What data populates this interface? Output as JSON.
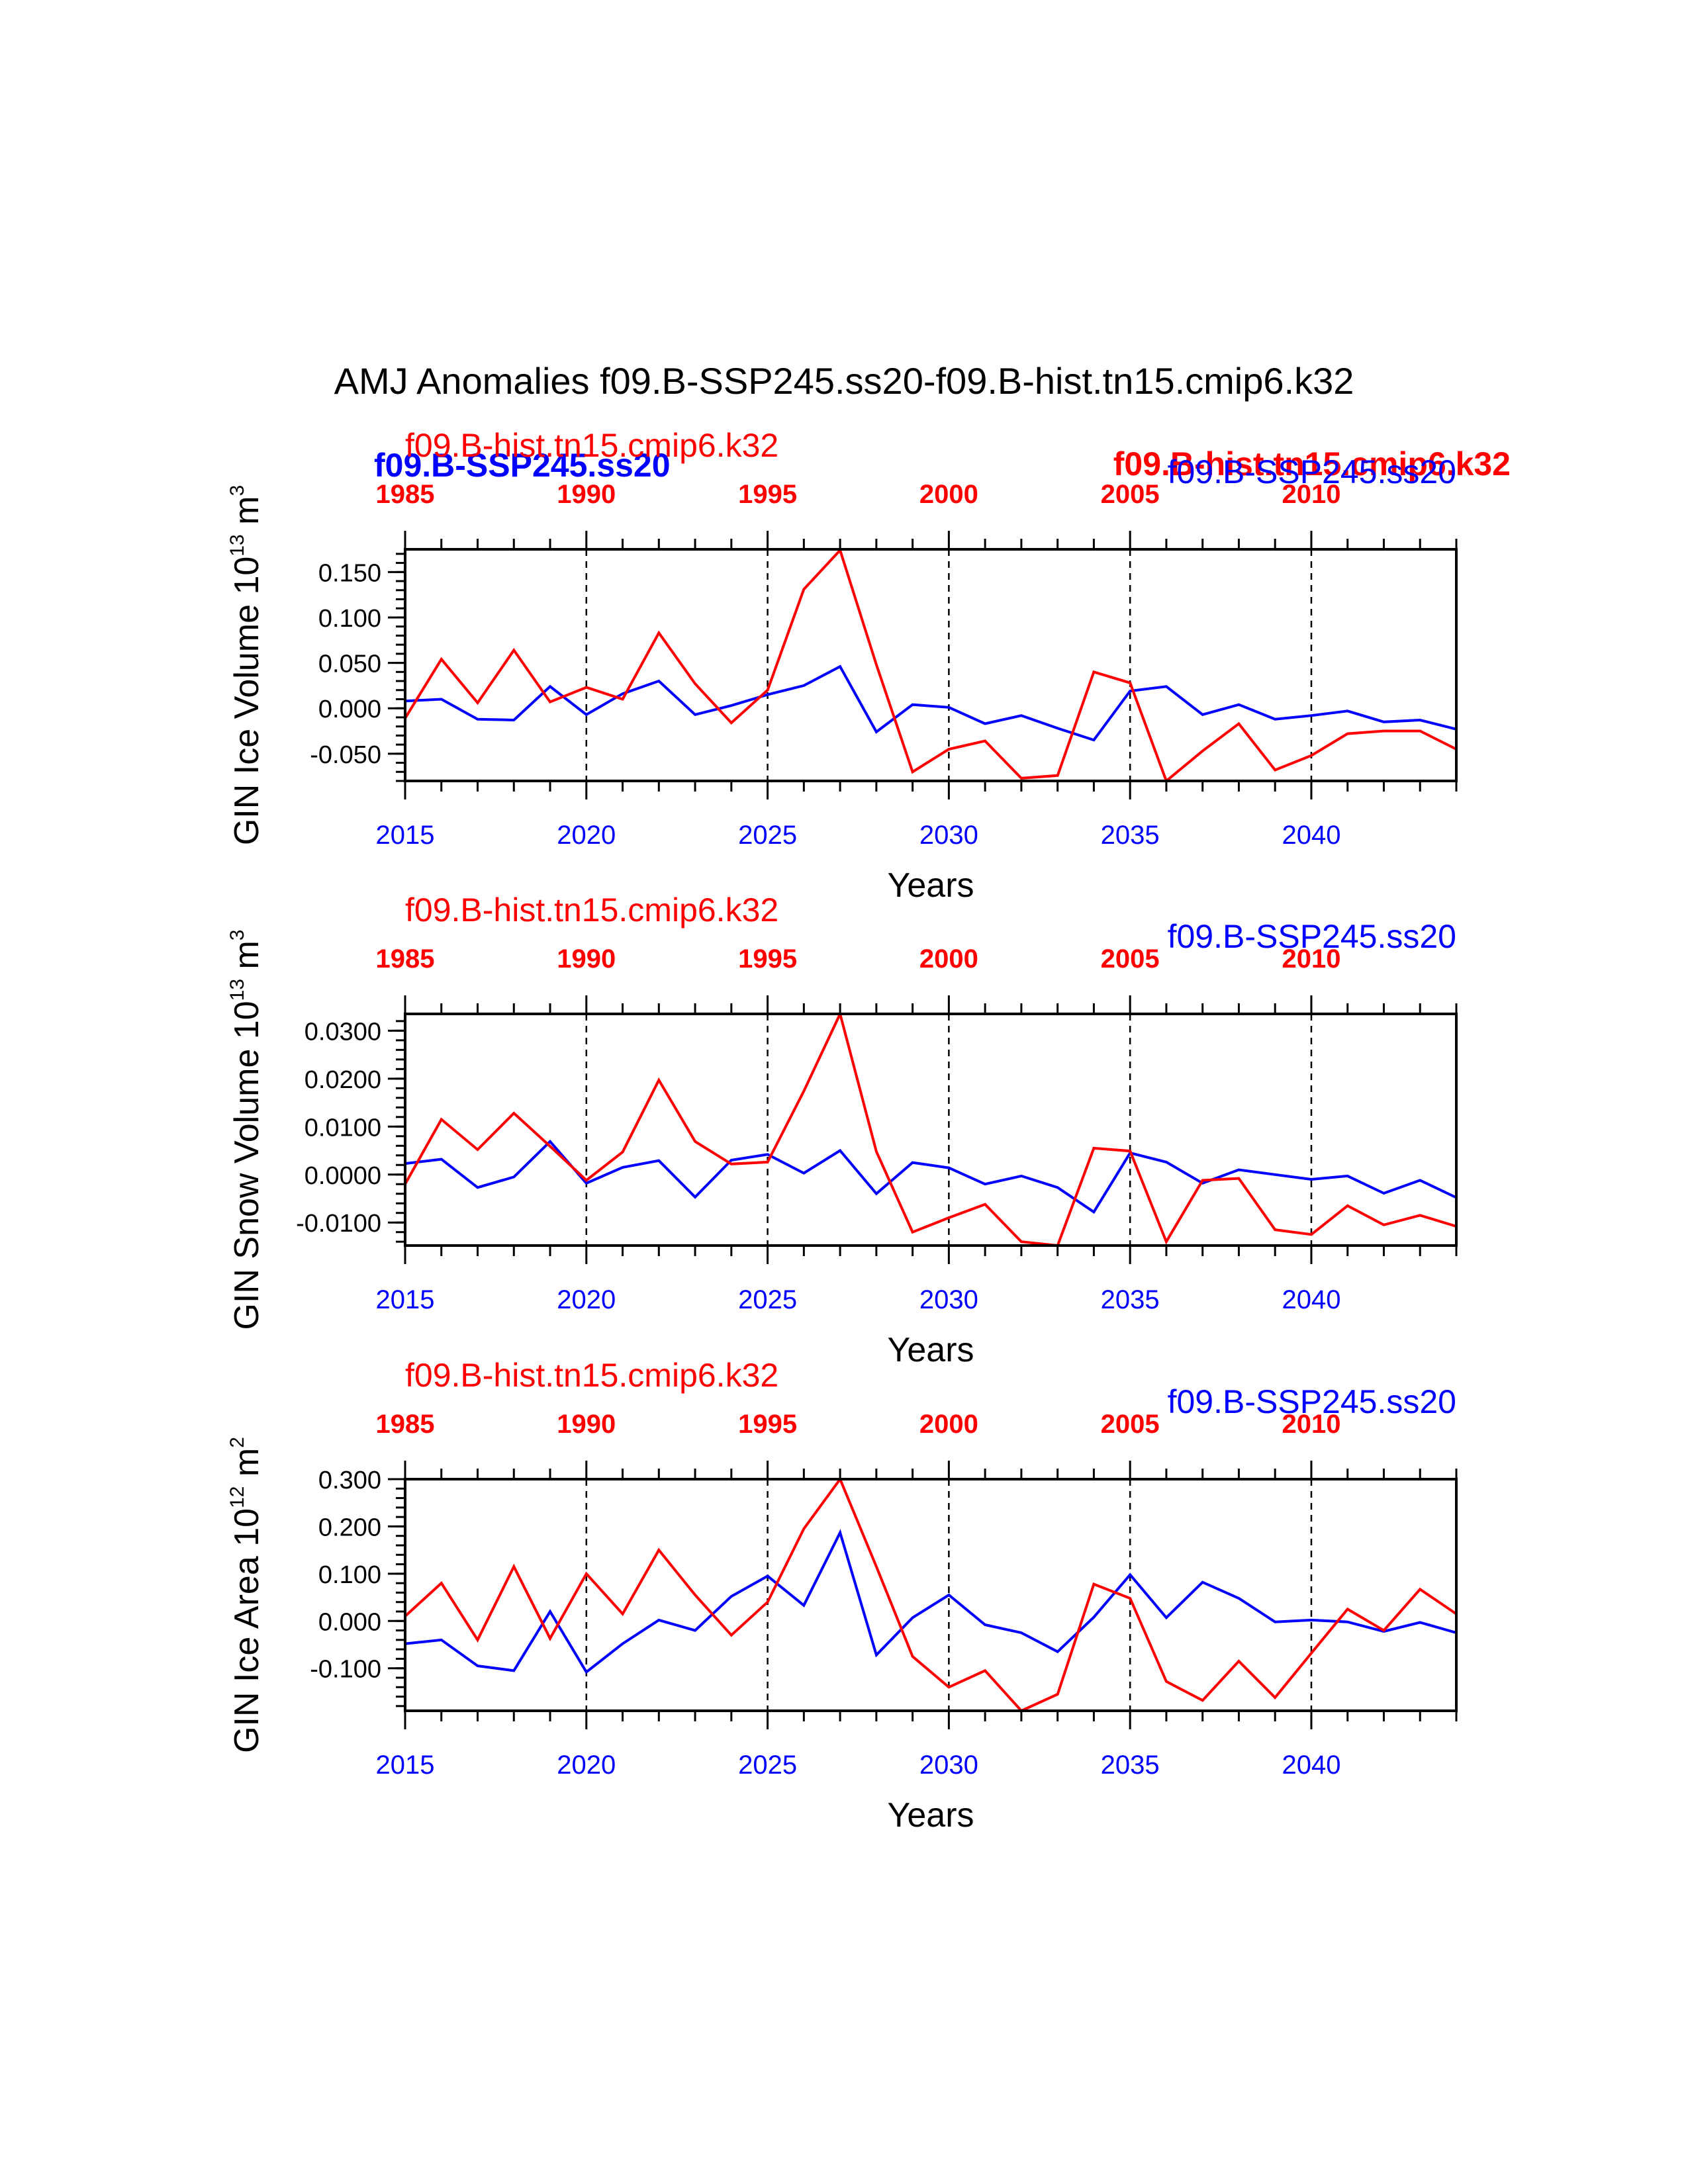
{
  "title": "AMJ Anomalies f09.B-SSP245.ss20-f09.B-hist.tn15.cmip6.k32",
  "overlay_labels": {
    "left_blue": "f09.B-SSP245.ss20",
    "right_red": "f09.B-hist.tn15.cmip6.k32"
  },
  "colors": {
    "ssp": "#0000ff",
    "hist": "#ff0000",
    "axis": "#000000"
  },
  "chart_data": [
    {
      "type": "line",
      "ylabel": "GIN Ice Volume",
      "yunit": "10^13 m^3",
      "yunit_base": "10",
      "yunit_exp": "13",
      "yunit_tail": "m",
      "yunit_tail_exp": "3",
      "xlabel": "Years",
      "top_axis_title": "f09.B-hist.tn15.cmip6.k32",
      "bottom_axis_title": "f09.B-SSP245.ss20",
      "xlim": [
        2015,
        2044
      ],
      "top_xlim": [
        1985,
        2014
      ],
      "ylim": [
        -0.08,
        0.175
      ],
      "yticks": [
        -0.05,
        0.0,
        0.05,
        0.1,
        0.15
      ],
      "ytick_labels": [
        "-0.050",
        "0.000",
        "0.050",
        "0.100",
        "0.150"
      ],
      "yminor": 0.01,
      "xticks": [
        2015,
        2020,
        2025,
        2030,
        2035,
        2040
      ],
      "xtick_labels": [
        "2015",
        "2020",
        "2025",
        "2030",
        "2035",
        "2040"
      ],
      "top_xticks": [
        1985,
        1990,
        1995,
        2000,
        2005,
        2010
      ],
      "top_xtick_labels": [
        "1985",
        "1990",
        "1995",
        "2000",
        "2005",
        "2010"
      ],
      "x": [
        2015,
        2016,
        2017,
        2018,
        2019,
        2020,
        2021,
        2022,
        2023,
        2024,
        2025,
        2026,
        2027,
        2028,
        2029,
        2030,
        2031,
        2032,
        2033,
        2034,
        2035,
        2036,
        2037,
        2038,
        2039,
        2040,
        2041,
        2042,
        2043,
        2044
      ],
      "series": [
        {
          "name": "f09.B-SSP245.ss20",
          "color": "#0000ff",
          "values": [
            0.008,
            0.01,
            -0.012,
            -0.013,
            0.024,
            -0.007,
            0.016,
            0.03,
            -0.007,
            0.003,
            0.015,
            0.025,
            0.046,
            -0.026,
            0.004,
            0.001,
            -0.017,
            -0.008,
            -0.022,
            -0.035,
            0.019,
            0.024,
            -0.007,
            0.004,
            -0.012,
            -0.008,
            -0.003,
            -0.015,
            -0.013,
            -0.023
          ]
        },
        {
          "name": "f09.B-hist.tn15.cmip6.k32",
          "color": "#ff0000",
          "values": [
            -0.011,
            0.054,
            0.006,
            0.064,
            0.007,
            0.023,
            0.01,
            0.083,
            0.027,
            -0.016,
            0.02,
            0.131,
            0.174,
            0.048,
            -0.07,
            -0.045,
            -0.036,
            -0.077,
            -0.074,
            0.04,
            0.028,
            -0.08,
            -0.047,
            -0.017,
            -0.068,
            -0.052,
            -0.028,
            -0.025,
            -0.025,
            -0.045
          ]
        }
      ]
    },
    {
      "type": "line",
      "ylabel": "GIN Snow Volume",
      "yunit": "10^13 m^3",
      "yunit_base": "10",
      "yunit_exp": "13",
      "yunit_tail": "m",
      "yunit_tail_exp": "3",
      "xlabel": "Years",
      "top_axis_title": "f09.B-hist.tn15.cmip6.k32",
      "bottom_axis_title": "f09.B-SSP245.ss20",
      "xlim": [
        2015,
        2044
      ],
      "top_xlim": [
        1985,
        2014
      ],
      "ylim": [
        -0.0148,
        0.0335
      ],
      "yticks": [
        -0.01,
        0.0,
        0.01,
        0.02,
        0.03
      ],
      "ytick_labels": [
        "-0.0100",
        "0.0000",
        "0.0100",
        "0.0200",
        "0.0300"
      ],
      "yminor": 0.002,
      "xticks": [
        2015,
        2020,
        2025,
        2030,
        2035,
        2040
      ],
      "xtick_labels": [
        "2015",
        "2020",
        "2025",
        "2030",
        "2035",
        "2040"
      ],
      "top_xticks": [
        1985,
        1990,
        1995,
        2000,
        2005,
        2010
      ],
      "top_xtick_labels": [
        "1985",
        "1990",
        "1995",
        "2000",
        "2005",
        "2010"
      ],
      "x": [
        2015,
        2016,
        2017,
        2018,
        2019,
        2020,
        2021,
        2022,
        2023,
        2024,
        2025,
        2026,
        2027,
        2028,
        2029,
        2030,
        2031,
        2032,
        2033,
        2034,
        2035,
        2036,
        2037,
        2038,
        2039,
        2040,
        2041,
        2042,
        2043,
        2044
      ],
      "series": [
        {
          "name": "f09.B-SSP245.ss20",
          "color": "#0000ff",
          "values": [
            0.0023,
            0.0032,
            -0.0027,
            -0.0005,
            0.0069,
            -0.0018,
            0.0015,
            0.0029,
            -0.0047,
            0.003,
            0.0042,
            0.0003,
            0.005,
            -0.004,
            0.0025,
            0.0014,
            -0.002,
            -0.0003,
            -0.0027,
            -0.0078,
            0.0045,
            0.0026,
            -0.0018,
            0.001,
            0.0,
            -0.001,
            -0.0003,
            -0.0039,
            -0.0012,
            -0.0048
          ]
        },
        {
          "name": "f09.B-hist.tn15.cmip6.k32",
          "color": "#ff0000",
          "values": [
            -0.002,
            0.0115,
            0.0052,
            0.0128,
            0.0059,
            -0.0012,
            0.0047,
            0.0197,
            0.0069,
            0.0022,
            0.0026,
            0.0174,
            0.0335,
            0.0048,
            -0.012,
            -0.009,
            -0.0062,
            -0.014,
            -0.0148,
            0.0055,
            0.0049,
            -0.014,
            -0.0012,
            -0.0008,
            -0.0115,
            -0.0125,
            -0.0065,
            -0.0105,
            -0.0085,
            -0.0108
          ]
        }
      ]
    },
    {
      "type": "line",
      "ylabel": "GIN Ice Area",
      "yunit": "10^12 m^2",
      "yunit_base": "10",
      "yunit_exp": "12",
      "yunit_tail": "m",
      "yunit_tail_exp": "2",
      "xlabel": "Years",
      "top_axis_title": "f09.B-hist.tn15.cmip6.k32",
      "bottom_axis_title": "f09.B-SSP245.ss20",
      "xlim": [
        2015,
        2044
      ],
      "top_xlim": [
        1985,
        2014
      ],
      "ylim": [
        -0.19,
        0.3
      ],
      "yticks": [
        -0.1,
        0.0,
        0.1,
        0.2,
        0.3
      ],
      "ytick_labels": [
        "-0.100",
        "0.000",
        "0.100",
        "0.200",
        "0.300"
      ],
      "yminor": 0.02,
      "xticks": [
        2015,
        2020,
        2025,
        2030,
        2035,
        2040
      ],
      "xtick_labels": [
        "2015",
        "2020",
        "2025",
        "2030",
        "2035",
        "2040"
      ],
      "top_xticks": [
        1985,
        1990,
        1995,
        2000,
        2005,
        2010
      ],
      "top_xtick_labels": [
        "1985",
        "1990",
        "1995",
        "2000",
        "2005",
        "2010"
      ],
      "x": [
        2015,
        2016,
        2017,
        2018,
        2019,
        2020,
        2021,
        2022,
        2023,
        2024,
        2025,
        2026,
        2027,
        2028,
        2029,
        2030,
        2031,
        2032,
        2033,
        2034,
        2035,
        2036,
        2037,
        2038,
        2039,
        2040,
        2041,
        2042,
        2043,
        2044
      ],
      "series": [
        {
          "name": "f09.B-SSP245.ss20",
          "color": "#0000ff",
          "values": [
            -0.048,
            -0.04,
            -0.095,
            -0.105,
            0.02,
            -0.108,
            -0.048,
            0.002,
            -0.02,
            0.052,
            0.095,
            0.033,
            0.187,
            -0.072,
            0.007,
            0.055,
            -0.008,
            -0.025,
            -0.065,
            0.008,
            0.098,
            0.007,
            0.082,
            0.048,
            -0.002,
            0.002,
            -0.002,
            -0.022,
            -0.003,
            -0.025
          ]
        },
        {
          "name": "f09.B-hist.tn15.cmip6.k32",
          "color": "#ff0000",
          "values": [
            0.01,
            0.08,
            -0.04,
            0.115,
            -0.037,
            0.1,
            0.015,
            0.15,
            0.055,
            -0.03,
            0.04,
            0.195,
            0.3,
            0.115,
            -0.075,
            -0.14,
            -0.105,
            -0.19,
            -0.155,
            0.078,
            0.048,
            -0.128,
            -0.168,
            -0.085,
            -0.162,
            -0.068,
            0.025,
            -0.02,
            0.067,
            0.015
          ]
        }
      ]
    }
  ]
}
